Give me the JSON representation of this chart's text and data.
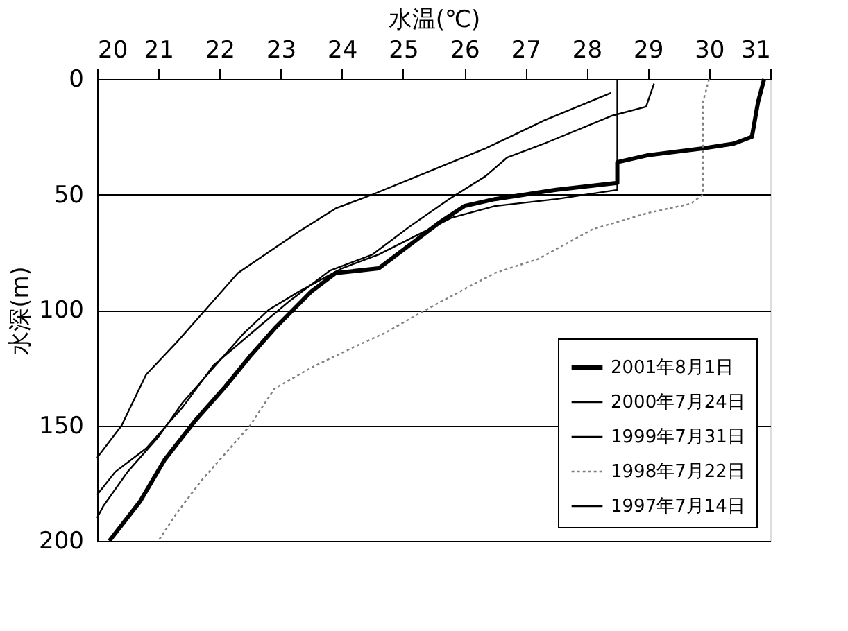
{
  "chart_data": {
    "type": "line",
    "xlabel": "水温(℃)",
    "ylabel": "水深(m)",
    "xlim": [
      20,
      31
    ],
    "xticks": [
      20,
      21,
      22,
      23,
      24,
      25,
      26,
      27,
      28,
      29,
      30,
      31
    ],
    "ylim": [
      200,
      0
    ],
    "yticks": [
      0,
      50,
      100,
      150,
      200
    ],
    "grid": "y",
    "legend": "bottom right",
    "line_style": "solid",
    "series": [
      {
        "name": "2001年8月1日",
        "color": "#000000",
        "x": [
          30.9,
          30.8,
          30.7,
          30.4,
          29.9,
          29.0,
          28.5,
          28.5,
          27.5,
          26.5,
          26.0,
          25.6,
          25.2,
          24.9,
          24.6,
          23.9,
          23.5,
          23.2,
          22.9,
          22.5,
          22.1,
          21.6,
          21.1,
          20.7,
          20.2
        ],
        "values": [
          0,
          10,
          25,
          28,
          30,
          33,
          36,
          45,
          48,
          52,
          55,
          62,
          70,
          76,
          82,
          84,
          92,
          100,
          108,
          120,
          133,
          148,
          165,
          183,
          200
        ]
      },
      {
        "name": "2000年7月24日",
        "color": "#000000",
        "x": [
          29.1,
          28.97,
          28.4,
          27.3,
          26.7,
          26.35,
          25.75,
          25.1,
          24.5,
          23.8,
          23.15,
          22.7,
          21.9,
          21.4,
          20.8,
          20.3,
          20.0
        ],
        "values": [
          2,
          12,
          16,
          28,
          34,
          42,
          52,
          64,
          76,
          83,
          96,
          106,
          124,
          142,
          160,
          170,
          180
        ]
      },
      {
        "name": "1999年7月31日",
        "color": "#000000",
        "x": [
          28.5,
          28.5,
          27.5,
          26.5,
          25.8,
          25.2,
          24.6,
          24.0,
          23.3,
          22.8,
          22.4,
          21.9,
          21.4,
          21.0,
          20.5,
          20.1,
          20.0
        ],
        "values": [
          0,
          48,
          52,
          55,
          60,
          68,
          76,
          82,
          92,
          100,
          110,
          125,
          140,
          155,
          170,
          185,
          190
        ]
      },
      {
        "name": "1998年7月22日",
        "color": "#808080",
        "line_style": "dotted",
        "x": [
          30.0,
          29.9,
          29.9,
          29.9,
          29.7,
          29.0,
          28.1,
          27.2,
          26.5,
          26.0,
          25.3,
          24.7,
          24.2,
          23.5,
          22.9,
          22.5,
          22.1,
          21.7,
          21.3,
          21.0
        ],
        "values": [
          0,
          10,
          30,
          50,
          54,
          58,
          65,
          78,
          84,
          91,
          101,
          110,
          116,
          125,
          134,
          150,
          162,
          174,
          188,
          200
        ]
      },
      {
        "name": "1997年7月14日",
        "color": "#000000",
        "x": [
          28.4,
          27.3,
          26.35,
          24.5,
          23.9,
          23.3,
          22.3,
          21.9,
          21.3,
          20.8,
          20.4,
          20.0
        ],
        "values": [
          6,
          18,
          30,
          50,
          56,
          66,
          84,
          96,
          114,
          128,
          150,
          164
        ]
      }
    ]
  }
}
